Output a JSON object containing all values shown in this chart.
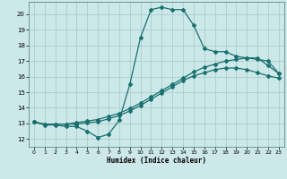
{
  "xlabel": "Humidex (Indice chaleur)",
  "background_color": "#cce8e8",
  "grid_color": "#aacece",
  "line_color": "#1a7070",
  "xlim": [
    -0.5,
    23.5
  ],
  "ylim": [
    11.5,
    20.8
  ],
  "xticks": [
    0,
    1,
    2,
    3,
    4,
    5,
    6,
    7,
    8,
    9,
    10,
    11,
    12,
    13,
    14,
    15,
    16,
    17,
    18,
    19,
    20,
    21,
    22,
    23
  ],
  "yticks": [
    12,
    13,
    14,
    15,
    16,
    17,
    18,
    19,
    20
  ],
  "line1_x": [
    0,
    1,
    2,
    3,
    4,
    5,
    6,
    7,
    8,
    9,
    10,
    11,
    12,
    13,
    14,
    15,
    16,
    17,
    18,
    19,
    20,
    21,
    22,
    23
  ],
  "line1_y": [
    13.1,
    12.9,
    12.9,
    12.8,
    12.8,
    12.5,
    12.1,
    12.3,
    13.2,
    15.5,
    18.5,
    20.3,
    20.45,
    20.3,
    20.3,
    19.3,
    17.8,
    17.6,
    17.6,
    17.3,
    17.2,
    17.2,
    16.7,
    16.2
  ],
  "line2_x": [
    0,
    1,
    2,
    3,
    4,
    5,
    6,
    7,
    8,
    9,
    10,
    11,
    12,
    13,
    14,
    15,
    16,
    17,
    18,
    19,
    20,
    21,
    22,
    23
  ],
  "line2_y": [
    13.1,
    12.95,
    12.95,
    12.95,
    13.05,
    13.15,
    13.25,
    13.45,
    13.65,
    13.95,
    14.3,
    14.7,
    15.1,
    15.5,
    15.9,
    16.3,
    16.6,
    16.8,
    17.0,
    17.1,
    17.2,
    17.1,
    17.0,
    16.2
  ],
  "line3_x": [
    0,
    1,
    2,
    3,
    4,
    5,
    6,
    7,
    8,
    9,
    10,
    11,
    12,
    13,
    14,
    15,
    16,
    17,
    18,
    19,
    20,
    21,
    22,
    23
  ],
  "line3_y": [
    13.1,
    12.95,
    12.95,
    12.95,
    12.95,
    13.05,
    13.1,
    13.3,
    13.5,
    13.8,
    14.15,
    14.55,
    14.95,
    15.35,
    15.75,
    16.05,
    16.25,
    16.45,
    16.55,
    16.55,
    16.45,
    16.25,
    16.05,
    15.9
  ]
}
